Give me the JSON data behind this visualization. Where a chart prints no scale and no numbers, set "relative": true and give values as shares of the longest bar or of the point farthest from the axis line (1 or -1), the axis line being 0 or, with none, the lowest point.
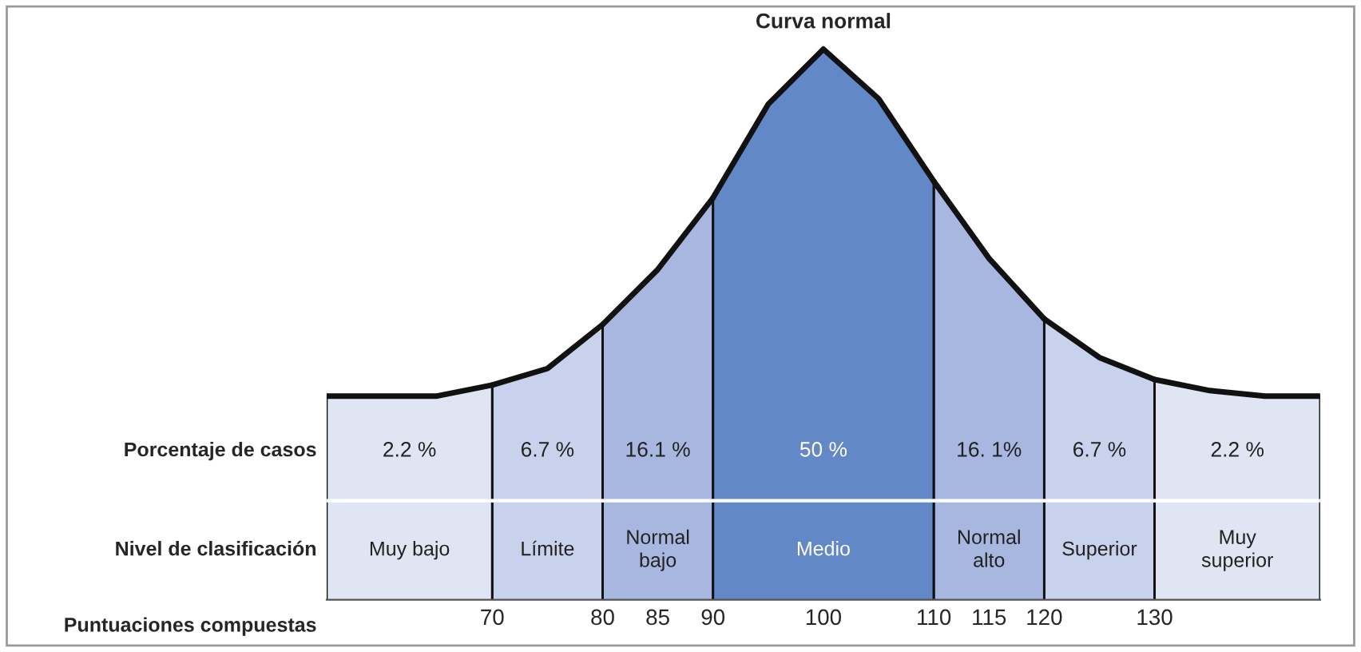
{
  "chart_data": {
    "type": "area",
    "title": "Curva normal",
    "relative": true,
    "series": [
      {
        "color": "#dfe5f3",
        "x": [
          55,
          60,
          65,
          70
        ],
        "values": [
          0.37,
          0.37,
          0.37,
          0.39
        ]
      },
      {
        "color": "#c8d2ec",
        "x": [
          70,
          75,
          80
        ],
        "values": [
          0.39,
          0.42,
          0.5
        ]
      },
      {
        "color": "#a7b7e0",
        "x": [
          80,
          85,
          90
        ],
        "values": [
          0.5,
          0.6,
          0.73
        ]
      },
      {
        "color": "#6288c8",
        "x": [
          90,
          95,
          100,
          105,
          110
        ],
        "values": [
          0.73,
          0.9,
          1.0,
          0.91,
          0.76
        ]
      },
      {
        "color": "#a7b7e0",
        "x": [
          110,
          115,
          120
        ],
        "values": [
          0.76,
          0.62,
          0.51
        ]
      },
      {
        "color": "#c8d2ec",
        "x": [
          120,
          125,
          130
        ],
        "values": [
          0.51,
          0.44,
          0.4
        ]
      },
      {
        "color": "#dfe5f3",
        "x": [
          130,
          135,
          140,
          145
        ],
        "values": [
          0.4,
          0.38,
          0.37,
          0.37
        ]
      }
    ],
    "xlim": [
      55,
      145
    ],
    "xticks": [
      70,
      80,
      85,
      90,
      100,
      110,
      115,
      120,
      130
    ],
    "annotations": [
      "Porcentaje de casos",
      "Nivel de clasificación",
      "Puntuaciones compuestas",
      "2.2 %",
      "6.7 %",
      "16.1 %",
      "50 %",
      "16. 1%",
      "6.7 %",
      "2.2 %",
      "Muy bajo",
      "Límite",
      "Normal\nbajo",
      "Medio",
      "Normal\nalto",
      "Superior",
      "Muy\nsuperior"
    ]
  }
}
